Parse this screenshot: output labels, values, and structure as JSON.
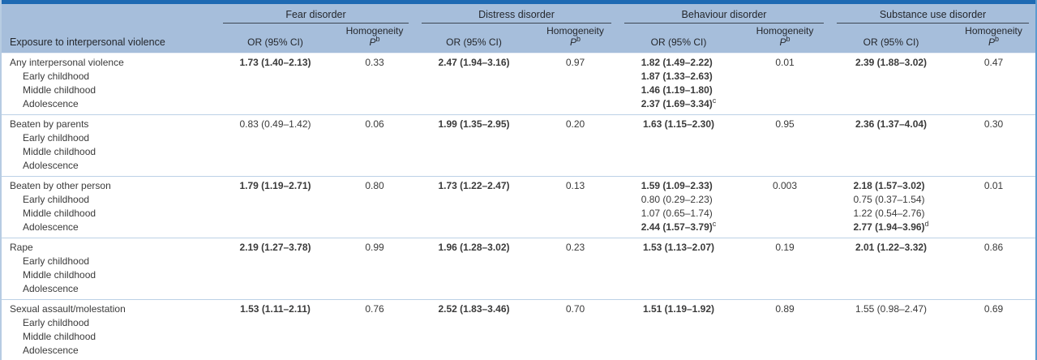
{
  "colors": {
    "top_bar": "#1e6ab3",
    "header_bg": "#a6bedb",
    "row_divider": "#bcd1e6",
    "footer_strip": "#d9e5f1",
    "border_left": "#b7cce2",
    "border_right": "#5d9bd0",
    "body_text": "#3a3a3a",
    "group_rule": "#3d4653"
  },
  "table": {
    "stub_header": "Exposure to interpersonal violence",
    "groups": [
      {
        "label": "Fear disorder"
      },
      {
        "label": "Distress disorder"
      },
      {
        "label": "Behaviour disorder"
      },
      {
        "label": "Substance use disorder"
      }
    ],
    "subheaders": {
      "or": "OR (95% CI)",
      "homogeneity": "Homogeneity",
      "p_label": "P",
      "p_sup": "b"
    },
    "group_keys": [
      "fear",
      "distress",
      "behaviour",
      "substance"
    ],
    "rows": [
      {
        "exposure": "Any interpersonal violence",
        "sub_labels": [
          "Early childhood",
          "Middle childhood",
          "Adolescence"
        ],
        "fear": {
          "or": [
            {
              "text": "1.73 (1.40–2.13)",
              "bold": true
            }
          ],
          "p": "0.33"
        },
        "distress": {
          "or": [
            {
              "text": "2.47 (1.94–3.16)",
              "bold": true
            }
          ],
          "p": "0.97"
        },
        "behaviour": {
          "or": [
            {
              "text": "1.82 (1.49–2.22)",
              "bold": true
            },
            {
              "text": "1.87 (1.33–2.63)",
              "bold": true
            },
            {
              "text": "1.46 (1.19–1.80)",
              "bold": true
            },
            {
              "text": "2.37 (1.69–3.34)",
              "bold": true,
              "sup": "c"
            }
          ],
          "p": "0.01"
        },
        "substance": {
          "or": [
            {
              "text": "2.39 (1.88–3.02)",
              "bold": true
            }
          ],
          "p": "0.47"
        }
      },
      {
        "exposure": "Beaten by parents",
        "sub_labels": [
          "Early childhood",
          "Middle childhood",
          "Adolescence"
        ],
        "fear": {
          "or": [
            {
              "text": "0.83 (0.49–1.42)",
              "bold": false
            }
          ],
          "p": "0.06"
        },
        "distress": {
          "or": [
            {
              "text": "1.99 (1.35–2.95)",
              "bold": true
            }
          ],
          "p": "0.20"
        },
        "behaviour": {
          "or": [
            {
              "text": "1.63 (1.15–2.30)",
              "bold": true
            }
          ],
          "p": "0.95"
        },
        "substance": {
          "or": [
            {
              "text": "2.36 (1.37–4.04)",
              "bold": true
            }
          ],
          "p": "0.30"
        }
      },
      {
        "exposure": "Beaten by other person",
        "sub_labels": [
          "Early childhood",
          "Middle childhood",
          "Adolescence"
        ],
        "fear": {
          "or": [
            {
              "text": "1.79 (1.19–2.71)",
              "bold": true
            }
          ],
          "p": "0.80"
        },
        "distress": {
          "or": [
            {
              "text": "1.73 (1.22–2.47)",
              "bold": true
            }
          ],
          "p": "0.13"
        },
        "behaviour": {
          "or": [
            {
              "text": "1.59 (1.09–2.33)",
              "bold": true
            },
            {
              "text": "0.80 (0.29–2.23)",
              "bold": false
            },
            {
              "text": "1.07 (0.65–1.74)",
              "bold": false
            },
            {
              "text": "2.44 (1.57–3.79)",
              "bold": true,
              "sup": "c"
            }
          ],
          "p": "0.003"
        },
        "substance": {
          "or": [
            {
              "text": "2.18 (1.57–3.02)",
              "bold": true
            },
            {
              "text": "0.75 (0.37–1.54)",
              "bold": false
            },
            {
              "text": "1.22 (0.54–2.76)",
              "bold": false
            },
            {
              "text": "2.77 (1.94–3.96)",
              "bold": true,
              "sup": "d"
            }
          ],
          "p": "0.01"
        }
      },
      {
        "exposure": "Rape",
        "sub_labels": [
          "Early childhood",
          "Middle childhood",
          "Adolescence"
        ],
        "fear": {
          "or": [
            {
              "text": "2.19 (1.27–3.78)",
              "bold": true
            }
          ],
          "p": "0.99"
        },
        "distress": {
          "or": [
            {
              "text": "1.96 (1.28–3.02)",
              "bold": true
            }
          ],
          "p": "0.23"
        },
        "behaviour": {
          "or": [
            {
              "text": "1.53 (1.13–2.07)",
              "bold": true
            }
          ],
          "p": "0.19"
        },
        "substance": {
          "or": [
            {
              "text": "2.01 (1.22–3.32)",
              "bold": true
            }
          ],
          "p": "0.86"
        }
      },
      {
        "exposure": "Sexual assault/molestation",
        "sub_labels": [
          "Early childhood",
          "Middle childhood",
          "Adolescence"
        ],
        "fear": {
          "or": [
            {
              "text": "1.53 (1.11–2.11)",
              "bold": true
            }
          ],
          "p": "0.76"
        },
        "distress": {
          "or": [
            {
              "text": "2.52 (1.83–3.46)",
              "bold": true
            }
          ],
          "p": "0.70"
        },
        "behaviour": {
          "or": [
            {
              "text": "1.51 (1.19–1.92)",
              "bold": true
            }
          ],
          "p": "0.89"
        },
        "substance": {
          "or": [
            {
              "text": "1.55 (0.98–2.47)",
              "bold": false
            }
          ],
          "p": "0.69"
        }
      }
    ]
  }
}
